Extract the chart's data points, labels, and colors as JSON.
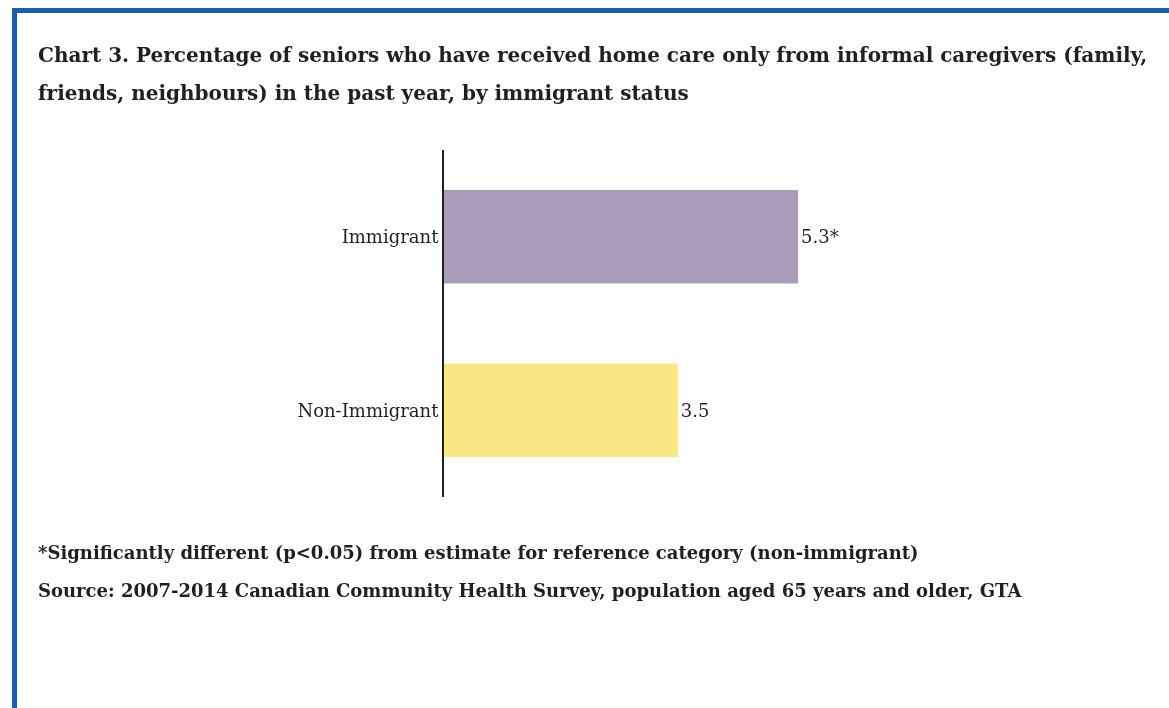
{
  "chart_data": {
    "type": "bar",
    "orientation": "horizontal",
    "title": "Chart 3. Percentage of seniors who have received home care only from informal caregivers (family, friends, neighbours) in the past year, by immigrant status",
    "categories": [
      "Immigrant",
      "Non-Immigrant"
    ],
    "values": [
      5.3,
      3.5
    ],
    "colors": [
      "#a99cb8",
      "#f9e784"
    ],
    "value_labels": [
      "5.3*",
      "3.5"
    ],
    "tick_labels": "y",
    "annotations": [
      "*Significantly different (p<0.05) from estimate for reference category (non-immigrant)",
      "Source: 2007-2014 Canadian Community Health Survey, population aged 65 years and older, GTA"
    ]
  }
}
